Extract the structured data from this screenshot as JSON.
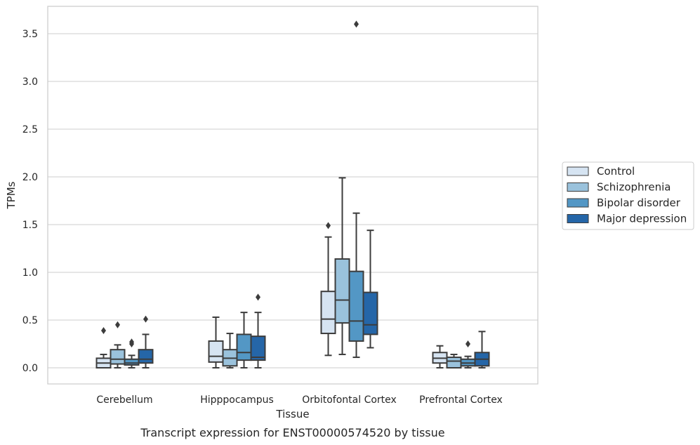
{
  "chart_data": {
    "type": "box",
    "title": "",
    "xlabel": "Tissue",
    "ylabel": "TPMs",
    "caption": "Transcript expression for ENST00000574520 by tissue",
    "ylim": [
      -0.17,
      3.77
    ],
    "yticks": [
      "0.0",
      "0.5",
      "1.0",
      "1.5",
      "2.0",
      "2.5",
      "3.0",
      "3.5"
    ],
    "ytick_values": [
      0.0,
      0.5,
      1.0,
      1.5,
      2.0,
      2.5,
      3.0,
      3.5
    ],
    "grid": "horizontal",
    "legend_position": "right",
    "categories": [
      "Cerebellum",
      "Hipppocampus",
      "Orbitofontal Cortex",
      "Prefrontal Cortex"
    ],
    "series": [
      {
        "name": "Control",
        "color": "#d6e4f2",
        "boxes": [
          {
            "whisker_low": 0.0,
            "q1": 0.0,
            "median": 0.05,
            "q3": 0.1,
            "whisker_high": 0.14,
            "outliers": [
              0.39
            ]
          },
          {
            "whisker_low": 0.0,
            "q1": 0.06,
            "median": 0.12,
            "q3": 0.28,
            "whisker_high": 0.53,
            "outliers": []
          },
          {
            "whisker_low": 0.13,
            "q1": 0.36,
            "median": 0.51,
            "q3": 0.8,
            "whisker_high": 1.37,
            "outliers": [
              1.49
            ]
          },
          {
            "whisker_low": 0.0,
            "q1": 0.05,
            "median": 0.1,
            "q3": 0.16,
            "whisker_high": 0.23,
            "outliers": []
          }
        ]
      },
      {
        "name": "Schizophrenia",
        "color": "#9ac2dc",
        "boxes": [
          {
            "whisker_low": 0.0,
            "q1": 0.04,
            "median": 0.09,
            "q3": 0.19,
            "whisker_high": 0.24,
            "outliers": [
              0.45
            ]
          },
          {
            "whisker_low": 0.0,
            "q1": 0.02,
            "median": 0.1,
            "q3": 0.19,
            "whisker_high": 0.36,
            "outliers": []
          },
          {
            "whisker_low": 0.14,
            "q1": 0.47,
            "median": 0.71,
            "q3": 1.14,
            "whisker_high": 1.99,
            "outliers": []
          },
          {
            "whisker_low": 0.0,
            "q1": 0.0,
            "median": 0.07,
            "q3": 0.11,
            "whisker_high": 0.14,
            "outliers": []
          }
        ]
      },
      {
        "name": "Bipolar disorder",
        "color": "#5397c5",
        "boxes": [
          {
            "whisker_low": 0.0,
            "q1": 0.03,
            "median": 0.05,
            "q3": 0.09,
            "whisker_high": 0.13,
            "outliers": [
              0.25,
              0.27
            ]
          },
          {
            "whisker_low": 0.0,
            "q1": 0.08,
            "median": 0.16,
            "q3": 0.35,
            "whisker_high": 0.58,
            "outliers": []
          },
          {
            "whisker_low": 0.11,
            "q1": 0.28,
            "median": 0.49,
            "q3": 1.01,
            "whisker_high": 1.62,
            "outliers": [
              3.6
            ]
          },
          {
            "whisker_low": 0.0,
            "q1": 0.02,
            "median": 0.05,
            "q3": 0.09,
            "whisker_high": 0.12,
            "outliers": [
              0.25
            ]
          }
        ]
      },
      {
        "name": "Major depression",
        "color": "#2566a8",
        "boxes": [
          {
            "whisker_low": 0.0,
            "q1": 0.05,
            "median": 0.09,
            "q3": 0.19,
            "whisker_high": 0.35,
            "outliers": [
              0.51
            ]
          },
          {
            "whisker_low": 0.0,
            "q1": 0.08,
            "median": 0.11,
            "q3": 0.33,
            "whisker_high": 0.58,
            "outliers": [
              0.74
            ]
          },
          {
            "whisker_low": 0.21,
            "q1": 0.35,
            "median": 0.45,
            "q3": 0.79,
            "whisker_high": 1.44,
            "outliers": []
          },
          {
            "whisker_low": 0.0,
            "q1": 0.02,
            "median": 0.09,
            "q3": 0.16,
            "whisker_high": 0.38,
            "outliers": []
          }
        ]
      }
    ]
  }
}
